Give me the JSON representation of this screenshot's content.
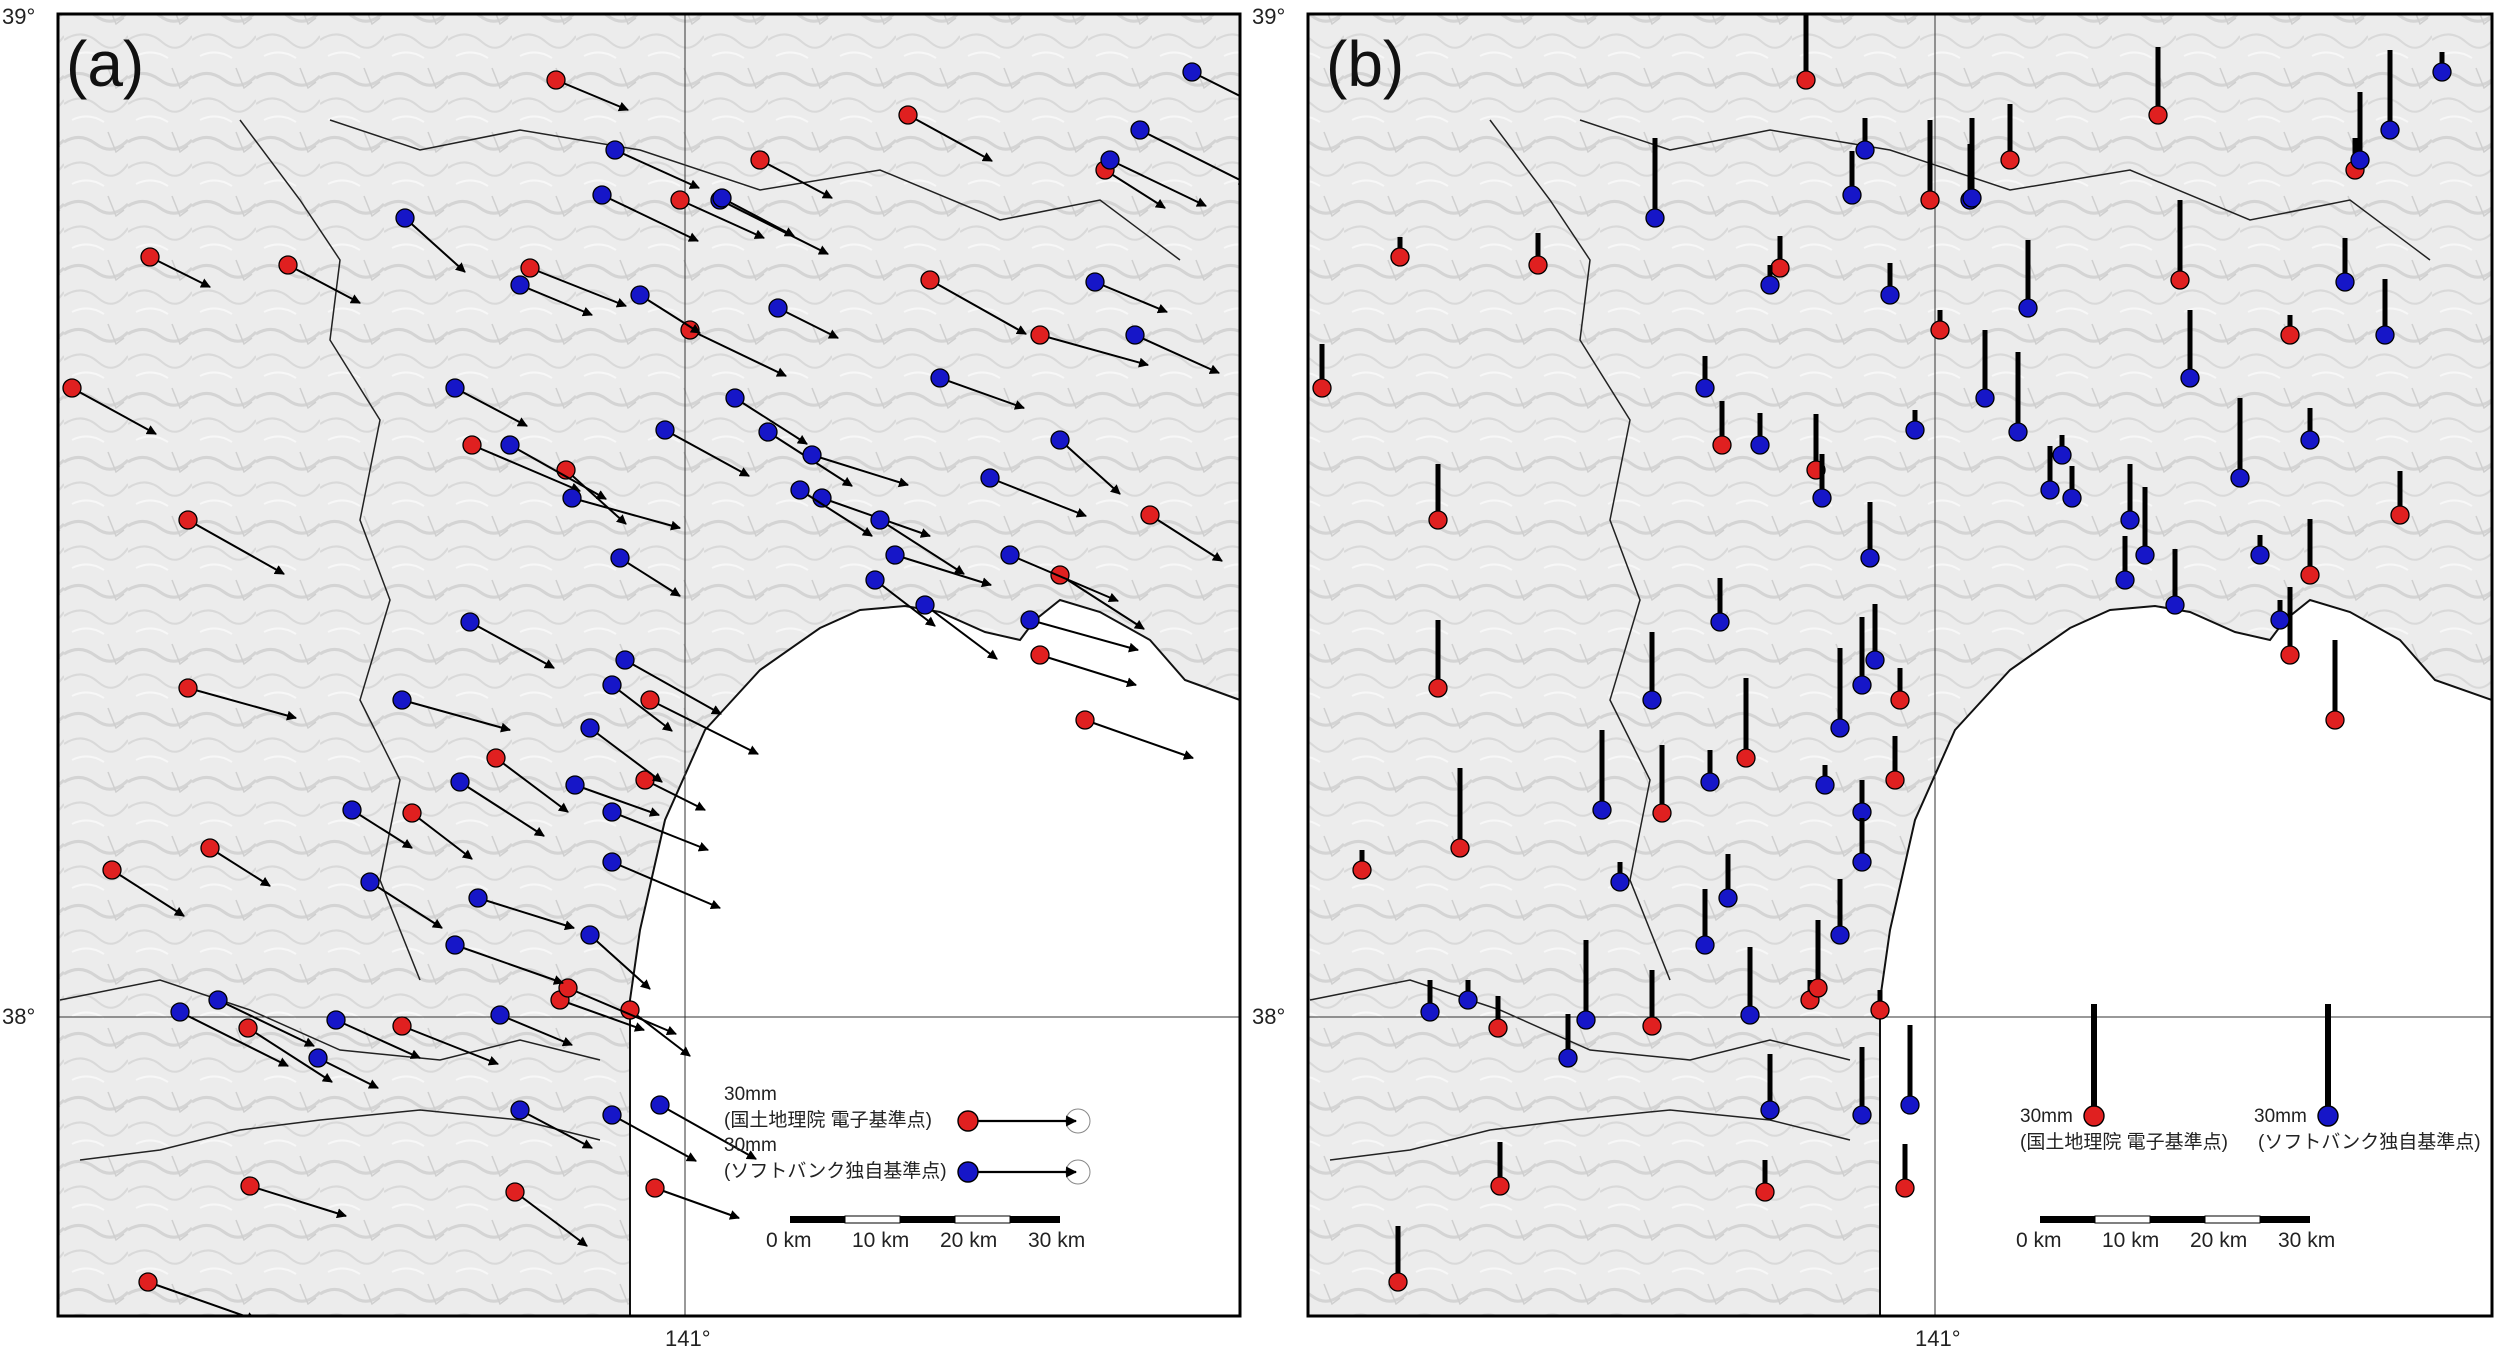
{
  "figure": {
    "panels": [
      {
        "label": "(a)",
        "lat_top": "39°",
        "lat_mid": "38°",
        "lon_bottom": "141°",
        "legend": {
          "mm_label": "30mm",
          "gsi_label": "(国土地理院 電子基準点)",
          "sb_label": "(ソフトバンク独自基準点)"
        },
        "scale": [
          "0 km",
          "10 km",
          "20 km",
          "30 km"
        ]
      },
      {
        "label": "(b)",
        "lat_top": "39°",
        "lat_mid": "38°",
        "lon_bottom": "141°",
        "legend": {
          "mm_label": "30mm",
          "gsi_label": "(国土地理院 電子基準点)",
          "sb_label": "(ソフトバンク独自基準点)"
        },
        "scale": [
          "0 km",
          "10 km",
          "20 km",
          "30 km"
        ]
      }
    ],
    "colors": {
      "gsi_station": "#e02020",
      "softbank_station": "#1616c8",
      "vector": "#000000",
      "terrain": "#ebebeb",
      "sea": "#ffffff"
    },
    "legend_vector_mm": 30,
    "scale_max_km": 30
  }
}
